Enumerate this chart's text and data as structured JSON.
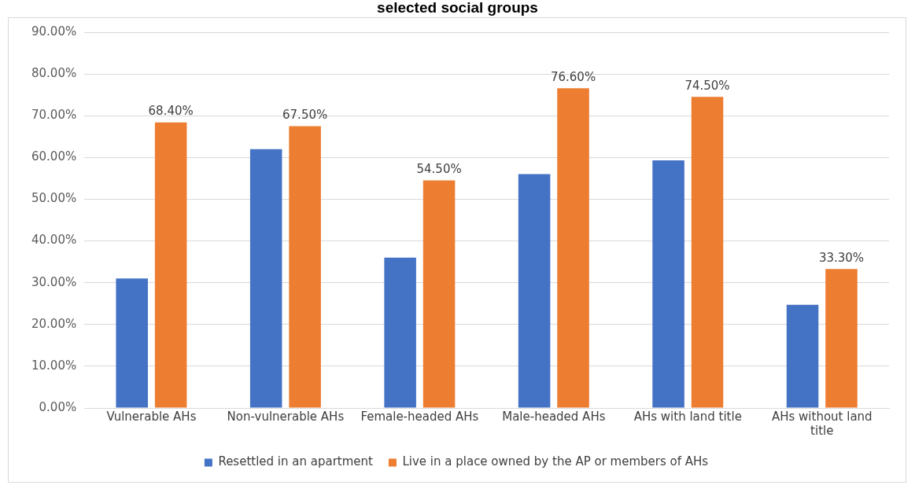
{
  "chart_data": {
    "type": "bar",
    "title": "selected social groups",
    "categories": [
      "Vulnerable AHs",
      "Non-vulnerable AHs",
      "Female-headed AHs",
      "Male-headed AHs",
      "AHs with land title",
      "AHs without land title"
    ],
    "series": [
      {
        "name": "Resettled in an apartment",
        "color": "#4472c4",
        "values": [
          31,
          62,
          36,
          56,
          59.3,
          24.7
        ]
      },
      {
        "name": "Live in a place owned by the AP or members of AHs",
        "color": "#ed7d31",
        "values": [
          68.4,
          67.5,
          54.5,
          76.6,
          74.5,
          33.3
        ],
        "value_labels": [
          "68.40%",
          "67.50%",
          "54.50%",
          "76.60%",
          "74.50%",
          "33.30%"
        ]
      }
    ],
    "ylim": [
      0,
      90
    ],
    "yticks": [
      {
        "value": 0,
        "label": "0.00%"
      },
      {
        "value": 10,
        "label": "10.00%"
      },
      {
        "value": 20,
        "label": "20.00%"
      },
      {
        "value": 30,
        "label": "30.00%"
      },
      {
        "value": 40,
        "label": "40.00%"
      },
      {
        "value": 50,
        "label": "50.00%"
      },
      {
        "value": 60,
        "label": "60.00%"
      },
      {
        "value": 70,
        "label": "70.00%"
      },
      {
        "value": 80,
        "label": "80.00%"
      },
      {
        "value": 90,
        "label": "90.00%"
      }
    ],
    "grid": "y",
    "legend": "bottom"
  }
}
